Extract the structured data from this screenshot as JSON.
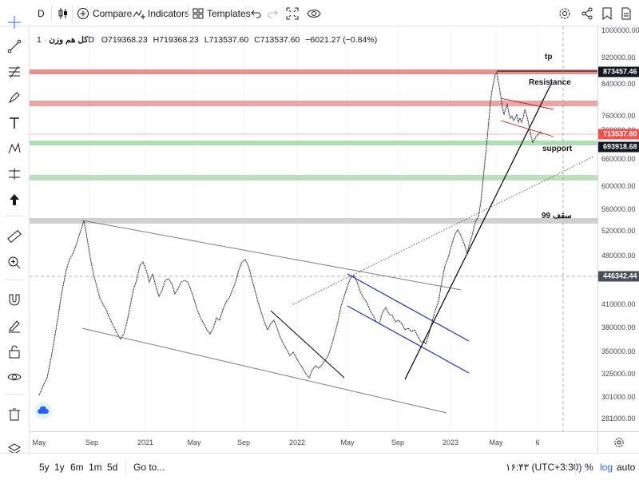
{
  "toolbar": {
    "symbol_short": "D",
    "compare_label": "Compare",
    "indicators_label": "Indicators",
    "templates_label": "Templates"
  },
  "legend": {
    "symbol_name": "کل هم وزن",
    "interval": "1D",
    "open": "O719368.23",
    "high": "H719368.23",
    "low": "L713537.60",
    "close": "C713537.60",
    "change": "−6021.27 (−0.84%)"
  },
  "annotations": {
    "tp": "tp",
    "resistance": "Resistance",
    "support": "support",
    "ceiling_99": "99 سقف"
  },
  "price_axis": {
    "ticks": [
      "1000000.00",
      "920000.00",
      "840000.00",
      "760000.00",
      "700000.00",
      "660000.00",
      "600000.00",
      "560000.00",
      "520000.00",
      "480000.00",
      "410000.00",
      "380000.00",
      "350000.00",
      "325000.00",
      "301000.00",
      "281000.00"
    ],
    "badges": {
      "tp": "873457.46",
      "last": "713537.60",
      "support": "693918.68",
      "crosshair": "446342.44"
    }
  },
  "time_axis": {
    "labels": [
      "May",
      "Sep",
      "2021",
      "May",
      "Sep",
      "2022",
      "May",
      "Sep",
      "2023",
      "May",
      "6"
    ]
  },
  "bottom": {
    "ranges": [
      "5y",
      "1y",
      "6m",
      "1m",
      "5d"
    ],
    "goto_label": "Go to...",
    "clock": "۱۶:۴۳ (UTC+3:30)",
    "percent_label": "%",
    "log_label": "log",
    "auto_label": "auto"
  },
  "colors": {
    "resistance_zone": "#e57373",
    "support_zone": "#a5d6a7",
    "gray_zone": "#c8c8c8",
    "badge_dark": "#131722",
    "badge_red": "#ef5350",
    "trend_blue": "#1e2dbe",
    "accent": "#2962ff"
  },
  "chart_data": {
    "type": "line",
    "title": "کل هم وزن",
    "interval": "1D",
    "y_scale": "log",
    "ylim": [
      270000,
      1000000
    ],
    "x": [
      "2020-05",
      "2020-09",
      "2021-01",
      "2021-05",
      "2021-09",
      "2022-01",
      "2022-05",
      "2022-09",
      "2023-01",
      "2023-05",
      "2023-06"
    ],
    "series": [
      {
        "values": [
          290000,
          525000,
          460000,
          420000,
          490000,
          330000,
          420000,
          360000,
          530000,
          873457,
          713537
        ]
      }
    ],
    "levels": {
      "tp": 873457.46,
      "last_close": 713537.6,
      "support": 693918.68,
      "crosshair": 446342.44
    }
  }
}
